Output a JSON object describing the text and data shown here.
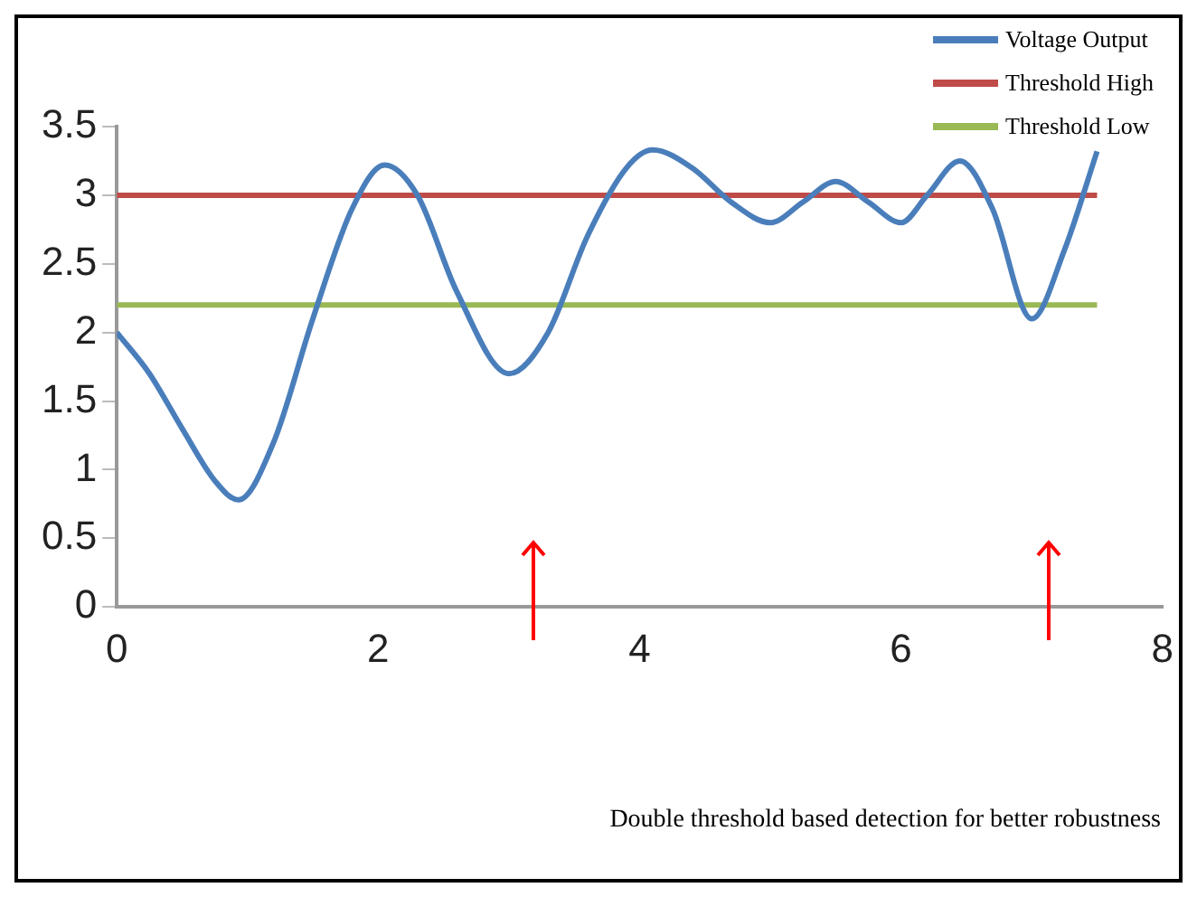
{
  "chart_data": {
    "type": "line",
    "annotations": [
      "Double threshold based detection for better robustness"
    ],
    "xlim": [
      0,
      8
    ],
    "xticks": [
      0,
      2,
      4,
      6,
      8
    ],
    "ylim": [
      0,
      3.5
    ],
    "yticks": [
      0,
      0.5,
      1,
      1.5,
      2,
      2.5,
      3,
      3.5
    ],
    "grid": false,
    "legend": "top right",
    "marker": "none",
    "series": [
      {
        "name": "Voltage Output",
        "color": "#4a7ebb",
        "x": [
          0,
          0.25,
          0.5,
          0.75,
          0.93,
          1.2,
          1.5,
          1.8,
          2.05,
          2.3,
          2.6,
          3,
          3.3,
          3.6,
          3.9,
          4.1,
          4.4,
          4.7,
          5,
          5.25,
          5.5,
          5.75,
          6,
          6.2,
          6.45,
          6.7,
          7,
          7.25,
          7.5
        ],
        "values": [
          2,
          1.7,
          1.3,
          0.92,
          0.78,
          1.2,
          2.1,
          2.9,
          3.22,
          3.0,
          2.3,
          1.7,
          2.0,
          2.7,
          3.2,
          3.33,
          3.2,
          2.95,
          2.8,
          2.95,
          3.1,
          2.95,
          2.8,
          3.0,
          3.25,
          2.9,
          2.1,
          2.6,
          3.32
        ]
      },
      {
        "name": "Threshold High",
        "color": "#be4b48",
        "x": [
          0,
          7.5
        ],
        "values": [
          3,
          3
        ]
      },
      {
        "name": "Threshold Low",
        "color": "#98b954",
        "x": [
          0,
          7.5
        ],
        "values": [
          2.2,
          2.2
        ]
      }
    ]
  }
}
